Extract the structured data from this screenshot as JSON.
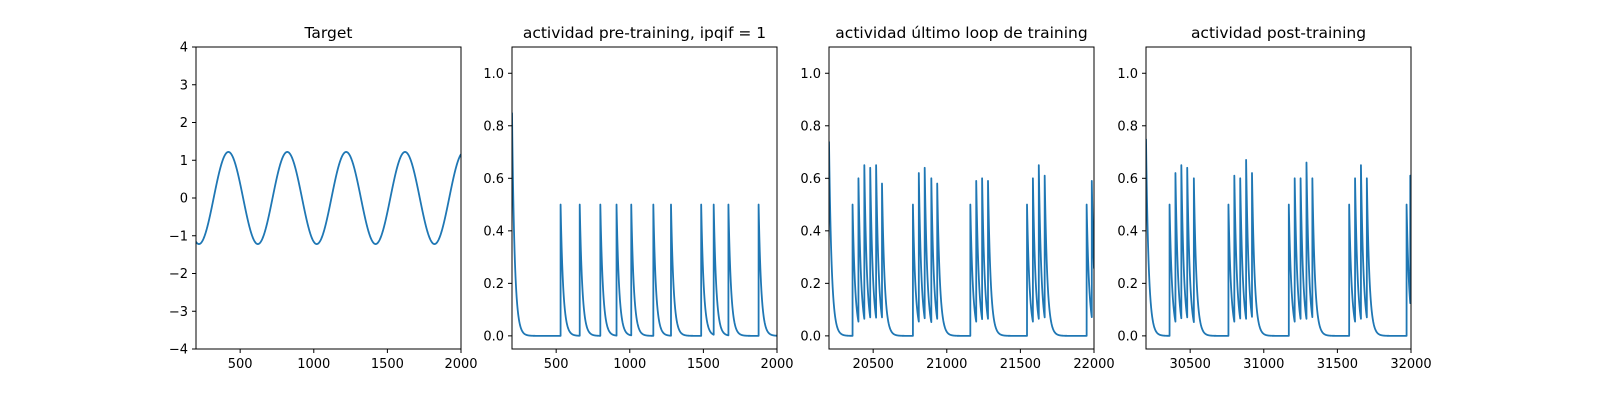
{
  "chart_data": [
    {
      "type": "line",
      "title": "Target",
      "xlim": [
        200,
        2000
      ],
      "ylim": [
        -4,
        4
      ],
      "xticks": [
        500,
        1000,
        1500,
        2000
      ],
      "yticks": [
        -4,
        -3,
        -2,
        -1,
        0,
        1,
        2,
        3,
        4
      ],
      "color": "#1f77b4",
      "series": [
        {
          "kind": "sine",
          "amplitude": 1.22,
          "period": 400,
          "phase_at": 220,
          "phase_value": -1.22
        }
      ]
    },
    {
      "type": "line",
      "title": "actividad pre-training, ipqif = 1",
      "xlim": [
        200,
        2000
      ],
      "ylim": [
        -0.05,
        1.1
      ],
      "xticks": [
        500,
        1000,
        1500,
        2000
      ],
      "yticks": [
        0.0,
        0.2,
        0.4,
        0.6,
        0.8,
        1.0
      ],
      "color": "#1f77b4",
      "series": [
        {
          "kind": "spike_decay",
          "initial_value": 0.85,
          "spikes": [
            [
              530,
              0.5
            ],
            [
              660,
              0.5
            ],
            [
              800,
              0.5
            ],
            [
              910,
              0.5
            ],
            [
              1010,
              0.5
            ],
            [
              1160,
              0.5
            ],
            [
              1280,
              0.5
            ],
            [
              1485,
              0.5
            ],
            [
              1570,
              0.5
            ],
            [
              1670,
              0.5
            ],
            [
              1875,
              0.5
            ]
          ]
        }
      ]
    },
    {
      "type": "line",
      "title": "actividad último loop de training",
      "xlim": [
        20200,
        22000
      ],
      "ylim": [
        -0.05,
        1.1
      ],
      "xticks": [
        20500,
        21000,
        21500,
        22000
      ],
      "yticks": [
        0.0,
        0.2,
        0.4,
        0.6,
        0.8,
        1.0
      ],
      "color": "#1f77b4",
      "series": [
        {
          "kind": "spike_decay",
          "initial_value": 0.74,
          "spikes": [
            [
              20360,
              0.5
            ],
            [
              20400,
              0.6
            ],
            [
              20440,
              0.65
            ],
            [
              20480,
              0.64
            ],
            [
              20520,
              0.65
            ],
            [
              20560,
              0.58
            ],
            [
              20770,
              0.5
            ],
            [
              20810,
              0.62
            ],
            [
              20850,
              0.64
            ],
            [
              20895,
              0.6
            ],
            [
              20935,
              0.58
            ],
            [
              21160,
              0.5
            ],
            [
              21200,
              0.59
            ],
            [
              21240,
              0.6
            ],
            [
              21280,
              0.59
            ],
            [
              21545,
              0.5
            ],
            [
              21585,
              0.6
            ],
            [
              21625,
              0.65
            ],
            [
              21665,
              0.61
            ],
            [
              21950,
              0.5
            ],
            [
              21985,
              0.59
            ]
          ]
        }
      ]
    },
    {
      "type": "line",
      "title": "actividad post-training",
      "xlim": [
        30200,
        32000
      ],
      "ylim": [
        -0.05,
        1.1
      ],
      "xticks": [
        30500,
        31000,
        31500,
        32000
      ],
      "yticks": [
        0.0,
        0.2,
        0.4,
        0.6,
        0.8,
        1.0
      ],
      "color": "#1f77b4",
      "series": [
        {
          "kind": "spike_decay",
          "initial_value": 0.75,
          "spikes": [
            [
              30360,
              0.5
            ],
            [
              30400,
              0.62
            ],
            [
              30440,
              0.65
            ],
            [
              30480,
              0.64
            ],
            [
              30525,
              0.6
            ],
            [
              30760,
              0.5
            ],
            [
              30800,
              0.61
            ],
            [
              30840,
              0.6
            ],
            [
              30880,
              0.67
            ],
            [
              30920,
              0.62
            ],
            [
              31170,
              0.5
            ],
            [
              31210,
              0.6
            ],
            [
              31250,
              0.6
            ],
            [
              31290,
              0.66
            ],
            [
              31330,
              0.6
            ],
            [
              31580,
              0.5
            ],
            [
              31620,
              0.6
            ],
            [
              31660,
              0.65
            ],
            [
              31700,
              0.6
            ],
            [
              31970,
              0.5
            ],
            [
              31995,
              0.61
            ]
          ]
        }
      ]
    }
  ]
}
